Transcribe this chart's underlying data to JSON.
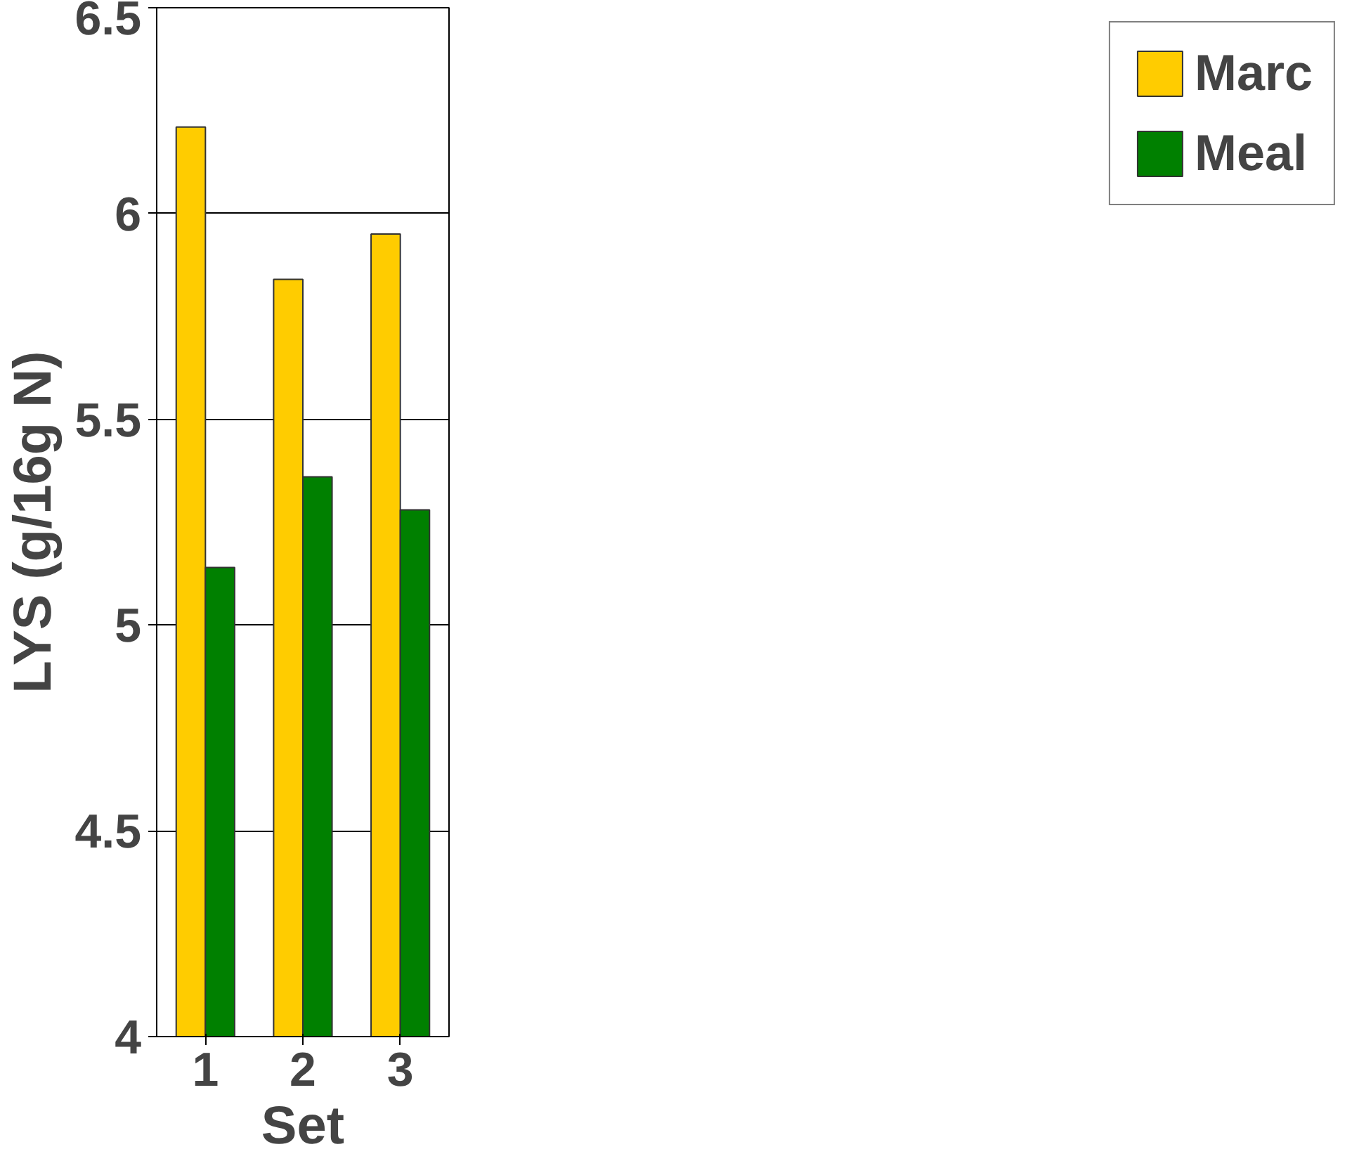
{
  "chart_data": {
    "type": "bar",
    "xlabel": "Set",
    "ylabel": "LYS (g/16g N)",
    "categories": [
      "1",
      "2",
      "3"
    ],
    "series": [
      {
        "name": "Marc",
        "color": "#ffcc00",
        "values": [
          6.21,
          5.84,
          5.95
        ]
      },
      {
        "name": "Meal",
        "color": "#008000",
        "values": [
          5.14,
          5.36,
          5.28
        ]
      }
    ],
    "ylim": [
      4,
      6.5
    ],
    "yticks": [
      4,
      4.5,
      5,
      5.5,
      6,
      6.5
    ],
    "grid": "y",
    "legend": "right"
  }
}
